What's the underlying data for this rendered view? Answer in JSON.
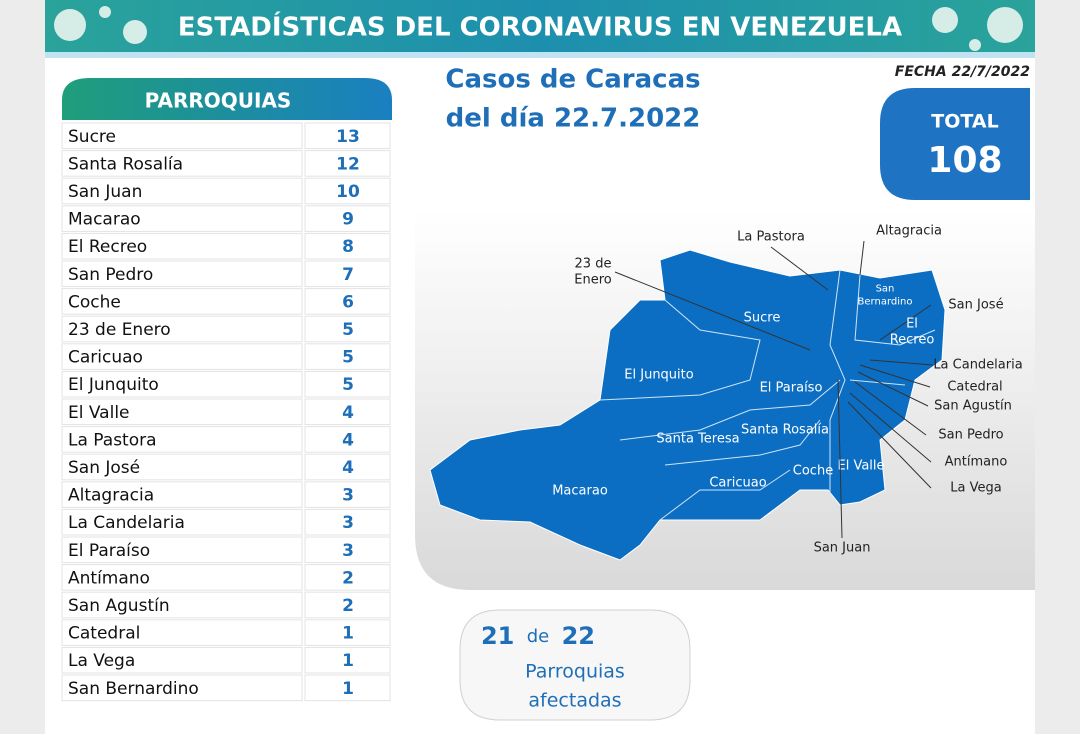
{
  "header": {
    "title": "ESTADÍSTICAS DEL CORONAVIRUS EN VENEZUELA",
    "date": "FECHA 22/7/2022"
  },
  "subtitle": [
    "Casos de Caracas",
    "del día 22.7.2022"
  ],
  "total": {
    "label": "TOTAL",
    "value": 108
  },
  "table": {
    "header": "PARROQUIAS",
    "rows": [
      [
        "Sucre",
        13
      ],
      [
        "Santa Rosalía",
        12
      ],
      [
        "San Juan",
        10
      ],
      [
        "Macarao",
        9
      ],
      [
        "El Recreo",
        8
      ],
      [
        "San Pedro",
        7
      ],
      [
        "Coche",
        6
      ],
      [
        "23 de Enero",
        5
      ],
      [
        "Caricuao",
        5
      ],
      [
        "El Junquito",
        5
      ],
      [
        "El Valle",
        4
      ],
      [
        "La Pastora",
        4
      ],
      [
        "San José",
        4
      ],
      [
        "Altagracia",
        3
      ],
      [
        "La Candelaria",
        3
      ],
      [
        "El Paraíso",
        3
      ],
      [
        "Antímano",
        2
      ],
      [
        "San Agustín",
        2
      ],
      [
        "Catedral",
        1
      ],
      [
        "La Vega",
        1
      ],
      [
        "San Bernardino",
        1
      ]
    ]
  },
  "map": {
    "labels": [
      [
        "La Pastora"
      ],
      [
        "Altagracia"
      ],
      [
        "23 de",
        "Enero"
      ],
      [
        "San",
        "Bernardino"
      ],
      [
        "San José"
      ],
      [
        "El",
        "Recreo"
      ],
      [
        "Sucre"
      ],
      [
        "El Junquito"
      ],
      [
        "El Paraíso"
      ],
      [
        "La Candelaria"
      ],
      [
        "Catedral"
      ],
      [
        "San Agustín"
      ],
      [
        "San Pedro"
      ],
      [
        "Antímano"
      ],
      [
        "La Vega"
      ],
      [
        "Santa Teresa"
      ],
      [
        "Santa Rosalía"
      ],
      [
        "Coche"
      ],
      [
        "El Valle"
      ],
      [
        "Macarao"
      ],
      [
        "Caricuao"
      ],
      [
        "San Juan"
      ]
    ]
  },
  "summary": {
    "affected": 21,
    "of": "de",
    "total": 22,
    "lines": [
      "Parroquias",
      "afectadas"
    ]
  }
}
